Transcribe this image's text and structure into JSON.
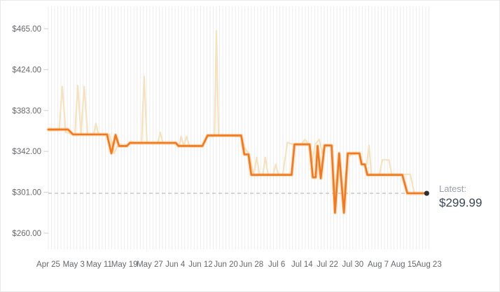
{
  "chart_data": {
    "type": "line",
    "title": "",
    "y_axis": {
      "tick_labels": [
        "$465.00",
        "$424.00",
        "$383.00",
        "$342.00",
        "$301.00",
        "$260.00"
      ],
      "tick_values": [
        465,
        424,
        383,
        342,
        301,
        260
      ],
      "unit": "USD",
      "range": [
        244,
        487
      ]
    },
    "x_axis": {
      "tick_labels": [
        "Apr 25",
        "May 3",
        "May 11",
        "May 19",
        "May 27",
        "Jun 4",
        "Jun 12",
        "Jun 20",
        "Jun 28",
        "Jul 6",
        "Jul 14",
        "Jul 22",
        "Jul 30",
        "Aug 7",
        "Aug 15",
        "Aug 23"
      ],
      "tick_day_offsets": [
        0,
        8,
        16,
        24,
        32,
        40,
        48,
        56,
        64,
        72,
        80,
        88,
        96,
        104,
        112,
        120
      ],
      "span_days": 120
    },
    "grid": {
      "vertical": "daily",
      "horizontal": false
    },
    "legend_position": "none",
    "latest": {
      "label": "Latest:",
      "value_label": "$299.99",
      "value": 299.99,
      "dashed_reference_line": true
    },
    "series": [
      {
        "name": "background-series",
        "points": [
          [
            0,
            363
          ],
          [
            3.4,
            363
          ],
          [
            4.4,
            407
          ],
          [
            5.5,
            361
          ],
          [
            8.4,
            359
          ],
          [
            9.3,
            408
          ],
          [
            10.3,
            359
          ],
          [
            11.3,
            407
          ],
          [
            12.4,
            359
          ],
          [
            14.3,
            359
          ],
          [
            15.0,
            370
          ],
          [
            15.8,
            359
          ],
          [
            19.3,
            359
          ],
          [
            20.8,
            340
          ],
          [
            21.7,
            347
          ],
          [
            24.6,
            347
          ],
          [
            26.1,
            352
          ],
          [
            27.0,
            350.5
          ],
          [
            29.4,
            350.5
          ],
          [
            30.2,
            417
          ],
          [
            31.1,
            350.5
          ],
          [
            34.5,
            350.5
          ],
          [
            35.3,
            361
          ],
          [
            36.1,
            350.5
          ],
          [
            40.5,
            350
          ],
          [
            41.2,
            347
          ],
          [
            41.9,
            357
          ],
          [
            42.7,
            347
          ],
          [
            43.6,
            357
          ],
          [
            44.5,
            347
          ],
          [
            48.5,
            347
          ],
          [
            50.3,
            357.5
          ],
          [
            52.4,
            357.5
          ],
          [
            53.0,
            463
          ],
          [
            53.7,
            357.5
          ],
          [
            60.9,
            357.5
          ],
          [
            62.0,
            345
          ],
          [
            63.3,
            339
          ],
          [
            64.8,
            318.5
          ],
          [
            65.7,
            336
          ],
          [
            66.6,
            318.5
          ],
          [
            67.6,
            318.5
          ],
          [
            68.4,
            336
          ],
          [
            69.3,
            318.5
          ],
          [
            70.9,
            318.5
          ],
          [
            71.7,
            329
          ],
          [
            72.6,
            318.5
          ],
          [
            73.9,
            318.5
          ],
          [
            75.4,
            351
          ],
          [
            77.1,
            349
          ],
          [
            79.8,
            349
          ],
          [
            80.9,
            354
          ],
          [
            82.1,
            349
          ],
          [
            83.2,
            330
          ],
          [
            84.1,
            349
          ],
          [
            85.4,
            354
          ],
          [
            86.4,
            340
          ],
          [
            87.4,
            349
          ],
          [
            89.2,
            348
          ],
          [
            90.3,
            300
          ],
          [
            91.6,
            335
          ],
          [
            93.1,
            296
          ],
          [
            94.4,
            338
          ],
          [
            97.9,
            340
          ],
          [
            98.7,
            329
          ],
          [
            99.9,
            329
          ],
          [
            100.4,
            329
          ],
          [
            101.1,
            348
          ],
          [
            101.9,
            318.5
          ],
          [
            104.4,
            318.5
          ],
          [
            105.3,
            333.5
          ],
          [
            107.4,
            333.5
          ],
          [
            108.3,
            318.5
          ],
          [
            111.4,
            318.5
          ],
          [
            112.6,
            319
          ],
          [
            114.1,
            319
          ],
          [
            115.4,
            300
          ],
          [
            119.3,
            300
          ]
        ]
      },
      {
        "name": "primary-series",
        "points": [
          [
            0,
            364
          ],
          [
            6.2,
            364
          ],
          [
            7.8,
            359
          ],
          [
            18.5,
            359
          ],
          [
            19.9,
            340
          ],
          [
            21.2,
            358.5
          ],
          [
            22.3,
            347.5
          ],
          [
            24.8,
            347.5
          ],
          [
            25.7,
            350.5
          ],
          [
            40.2,
            350.5
          ],
          [
            41.0,
            347.5
          ],
          [
            48.6,
            347.5
          ],
          [
            50.2,
            358
          ],
          [
            60.8,
            358
          ],
          [
            61.8,
            339
          ],
          [
            63.1,
            339
          ],
          [
            64.0,
            318.5
          ],
          [
            76.7,
            318.5
          ],
          [
            77.6,
            349
          ],
          [
            82.4,
            349
          ],
          [
            83.4,
            316
          ],
          [
            84.3,
            316
          ],
          [
            84.9,
            347.5
          ],
          [
            85.9,
            315
          ],
          [
            87.1,
            348
          ],
          [
            89.3,
            348
          ],
          [
            90.4,
            280.5
          ],
          [
            91.7,
            340
          ],
          [
            93.2,
            280.5
          ],
          [
            94.4,
            340
          ],
          [
            98.1,
            340
          ],
          [
            98.8,
            329
          ],
          [
            99.8,
            329
          ],
          [
            100.6,
            318.5
          ],
          [
            111.6,
            318.5
          ],
          [
            113.2,
            299.99
          ],
          [
            119.3,
            299.99
          ]
        ]
      }
    ]
  },
  "colors": {
    "primary_series": "#f4791c",
    "primary_halo": "#f6a654",
    "background_series": "#f5e3c0",
    "grid": "#ededed",
    "y_tick": "#cfcfcf",
    "dashed_latest": "#c4c4c4",
    "axis_text": "#67696c",
    "latest_label_text": "#9aa0a5",
    "latest_value_text": "#3b4754",
    "dot": "#2e2e2e",
    "border": "#e9e9e9"
  }
}
